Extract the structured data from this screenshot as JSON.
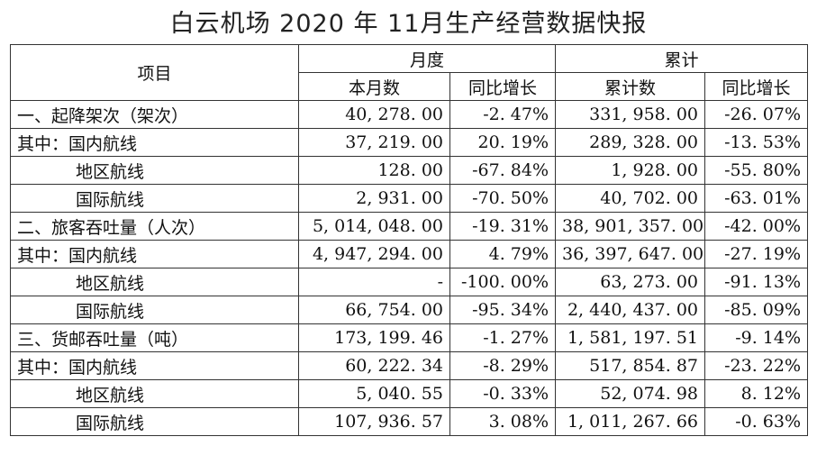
{
  "title": "白云机场 2020 年 11月生产经营数据快报",
  "table": {
    "header": {
      "item": "项目",
      "monthly": "月度",
      "cumulative": "累计",
      "this_month": "本月数",
      "yoy": "同比增长",
      "cum_count": "累计数",
      "cum_yoy": "同比增长"
    },
    "rows": [
      {
        "label": "一、起降架次（架次）",
        "month": "40, 278. 00",
        "month_yoy": "-2. 47%",
        "cum": "331, 958. 00",
        "cum_yoy": "-26. 07%",
        "indent": false
      },
      {
        "label": "其中：国内航线",
        "month": "37, 219. 00",
        "month_yoy": "20. 19%",
        "cum": "289, 328. 00",
        "cum_yoy": "-13. 53%",
        "indent": false
      },
      {
        "label": "地区航线",
        "month": "128. 00",
        "month_yoy": "-67. 84%",
        "cum": "1, 928. 00",
        "cum_yoy": "-55. 80%",
        "indent": true
      },
      {
        "label": "国际航线",
        "month": "2, 931. 00",
        "month_yoy": "-70. 50%",
        "cum": "40, 702. 00",
        "cum_yoy": "-63. 01%",
        "indent": true
      },
      {
        "label": "二、旅客吞吐量（人次）",
        "month": "5, 014, 048. 00",
        "month_yoy": "-19. 31%",
        "cum": "38, 901, 357. 00",
        "cum_yoy": "-42. 00%",
        "indent": false
      },
      {
        "label": "其中：国内航线",
        "month": "4, 947, 294. 00",
        "month_yoy": "4. 79%",
        "cum": "36, 397, 647. 00",
        "cum_yoy": "-27. 19%",
        "indent": false
      },
      {
        "label": "地区航线",
        "month": "-",
        "month_yoy": "-100. 00%",
        "cum": "63, 273. 00",
        "cum_yoy": "-91. 13%",
        "indent": true
      },
      {
        "label": "国际航线",
        "month": "66, 754. 00",
        "month_yoy": "-95. 34%",
        "cum": "2, 440, 437. 00",
        "cum_yoy": "-85. 09%",
        "indent": true
      },
      {
        "label": "三、货邮吞吐量（吨）",
        "month": "173, 199. 46",
        "month_yoy": "-1. 27%",
        "cum": "1, 581, 197. 51",
        "cum_yoy": "-9. 14%",
        "indent": false
      },
      {
        "label": "其中：国内航线",
        "month": "60, 222. 34",
        "month_yoy": "-8. 29%",
        "cum": "517, 854. 87",
        "cum_yoy": "-23. 22%",
        "indent": false
      },
      {
        "label": "地区航线",
        "month": "5, 040. 55",
        "month_yoy": "-0. 33%",
        "cum": "52, 074. 98",
        "cum_yoy": "8. 12%",
        "indent": true
      },
      {
        "label": "国际航线",
        "month": "107, 936. 57",
        "month_yoy": "3. 08%",
        "cum": "1, 011, 267. 66",
        "cum_yoy": "-0. 63%",
        "indent": true
      }
    ]
  }
}
